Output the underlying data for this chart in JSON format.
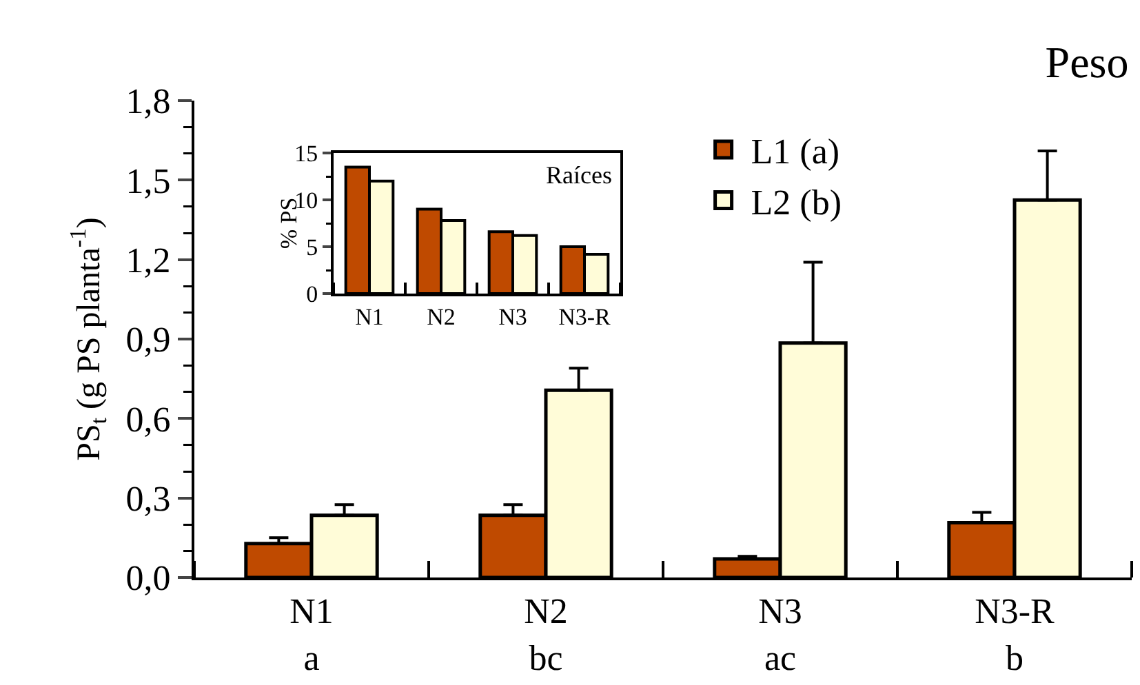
{
  "chart_data": [
    {
      "type": "bar",
      "title": "Peso",
      "ylabel": "PS$_{t}$ (g PS planta$^{-1}$)",
      "categories": [
        "N1\na",
        "N2\nbc",
        "N3\nac",
        "N3-R\nb"
      ],
      "legend": "top",
      "ylim": [
        0,
        1.8
      ],
      "yticks": [
        {
          "value": 0,
          "label": "0,0"
        },
        {
          "value": 0.3,
          "label": "0,3"
        },
        {
          "value": 0.6,
          "label": "0,6"
        },
        {
          "value": 0.9,
          "label": "0,9"
        },
        {
          "value": 1.2,
          "label": "1,2"
        },
        {
          "value": 1.5,
          "label": "1,5"
        },
        {
          "value": 1.8,
          "label": "1,8"
        }
      ],
      "series": [
        {
          "name": "L1 (a)",
          "color": "#bf4a00",
          "values": [
            0.128,
            0.235,
            0.07,
            0.207
          ],
          "errors": [
            [
              0.128,
              0.15
            ],
            [
              0.235,
              0.275
            ],
            [
              0.07,
              0.08
            ],
            [
              0.207,
              0.246
            ]
          ]
        },
        {
          "name": "L2 (b)",
          "color": "#fffcd8",
          "values": [
            0.235,
            0.707,
            0.885,
            1.425
          ],
          "errors": [
            [
              0.235,
              0.275
            ],
            [
              0.707,
              0.79
            ],
            [
              0.885,
              1.19
            ],
            [
              1.425,
              1.61
            ]
          ]
        }
      ]
    },
    {
      "type": "bar",
      "ylabel": "% PS",
      "annotations": [
        "Raíces"
      ],
      "categories": [
        "N1",
        "N2",
        "N3",
        "N3-R"
      ],
      "ylim": [
        0,
        15
      ],
      "yticks": [
        0,
        5,
        10,
        15
      ],
      "series": [
        {
          "color": "#bf4a00",
          "values": [
            13.5,
            9,
            6.6,
            5
          ]
        },
        {
          "color": "#fffcd8",
          "values": [
            12,
            7.8,
            6.2,
            4.2
          ]
        }
      ]
    }
  ]
}
